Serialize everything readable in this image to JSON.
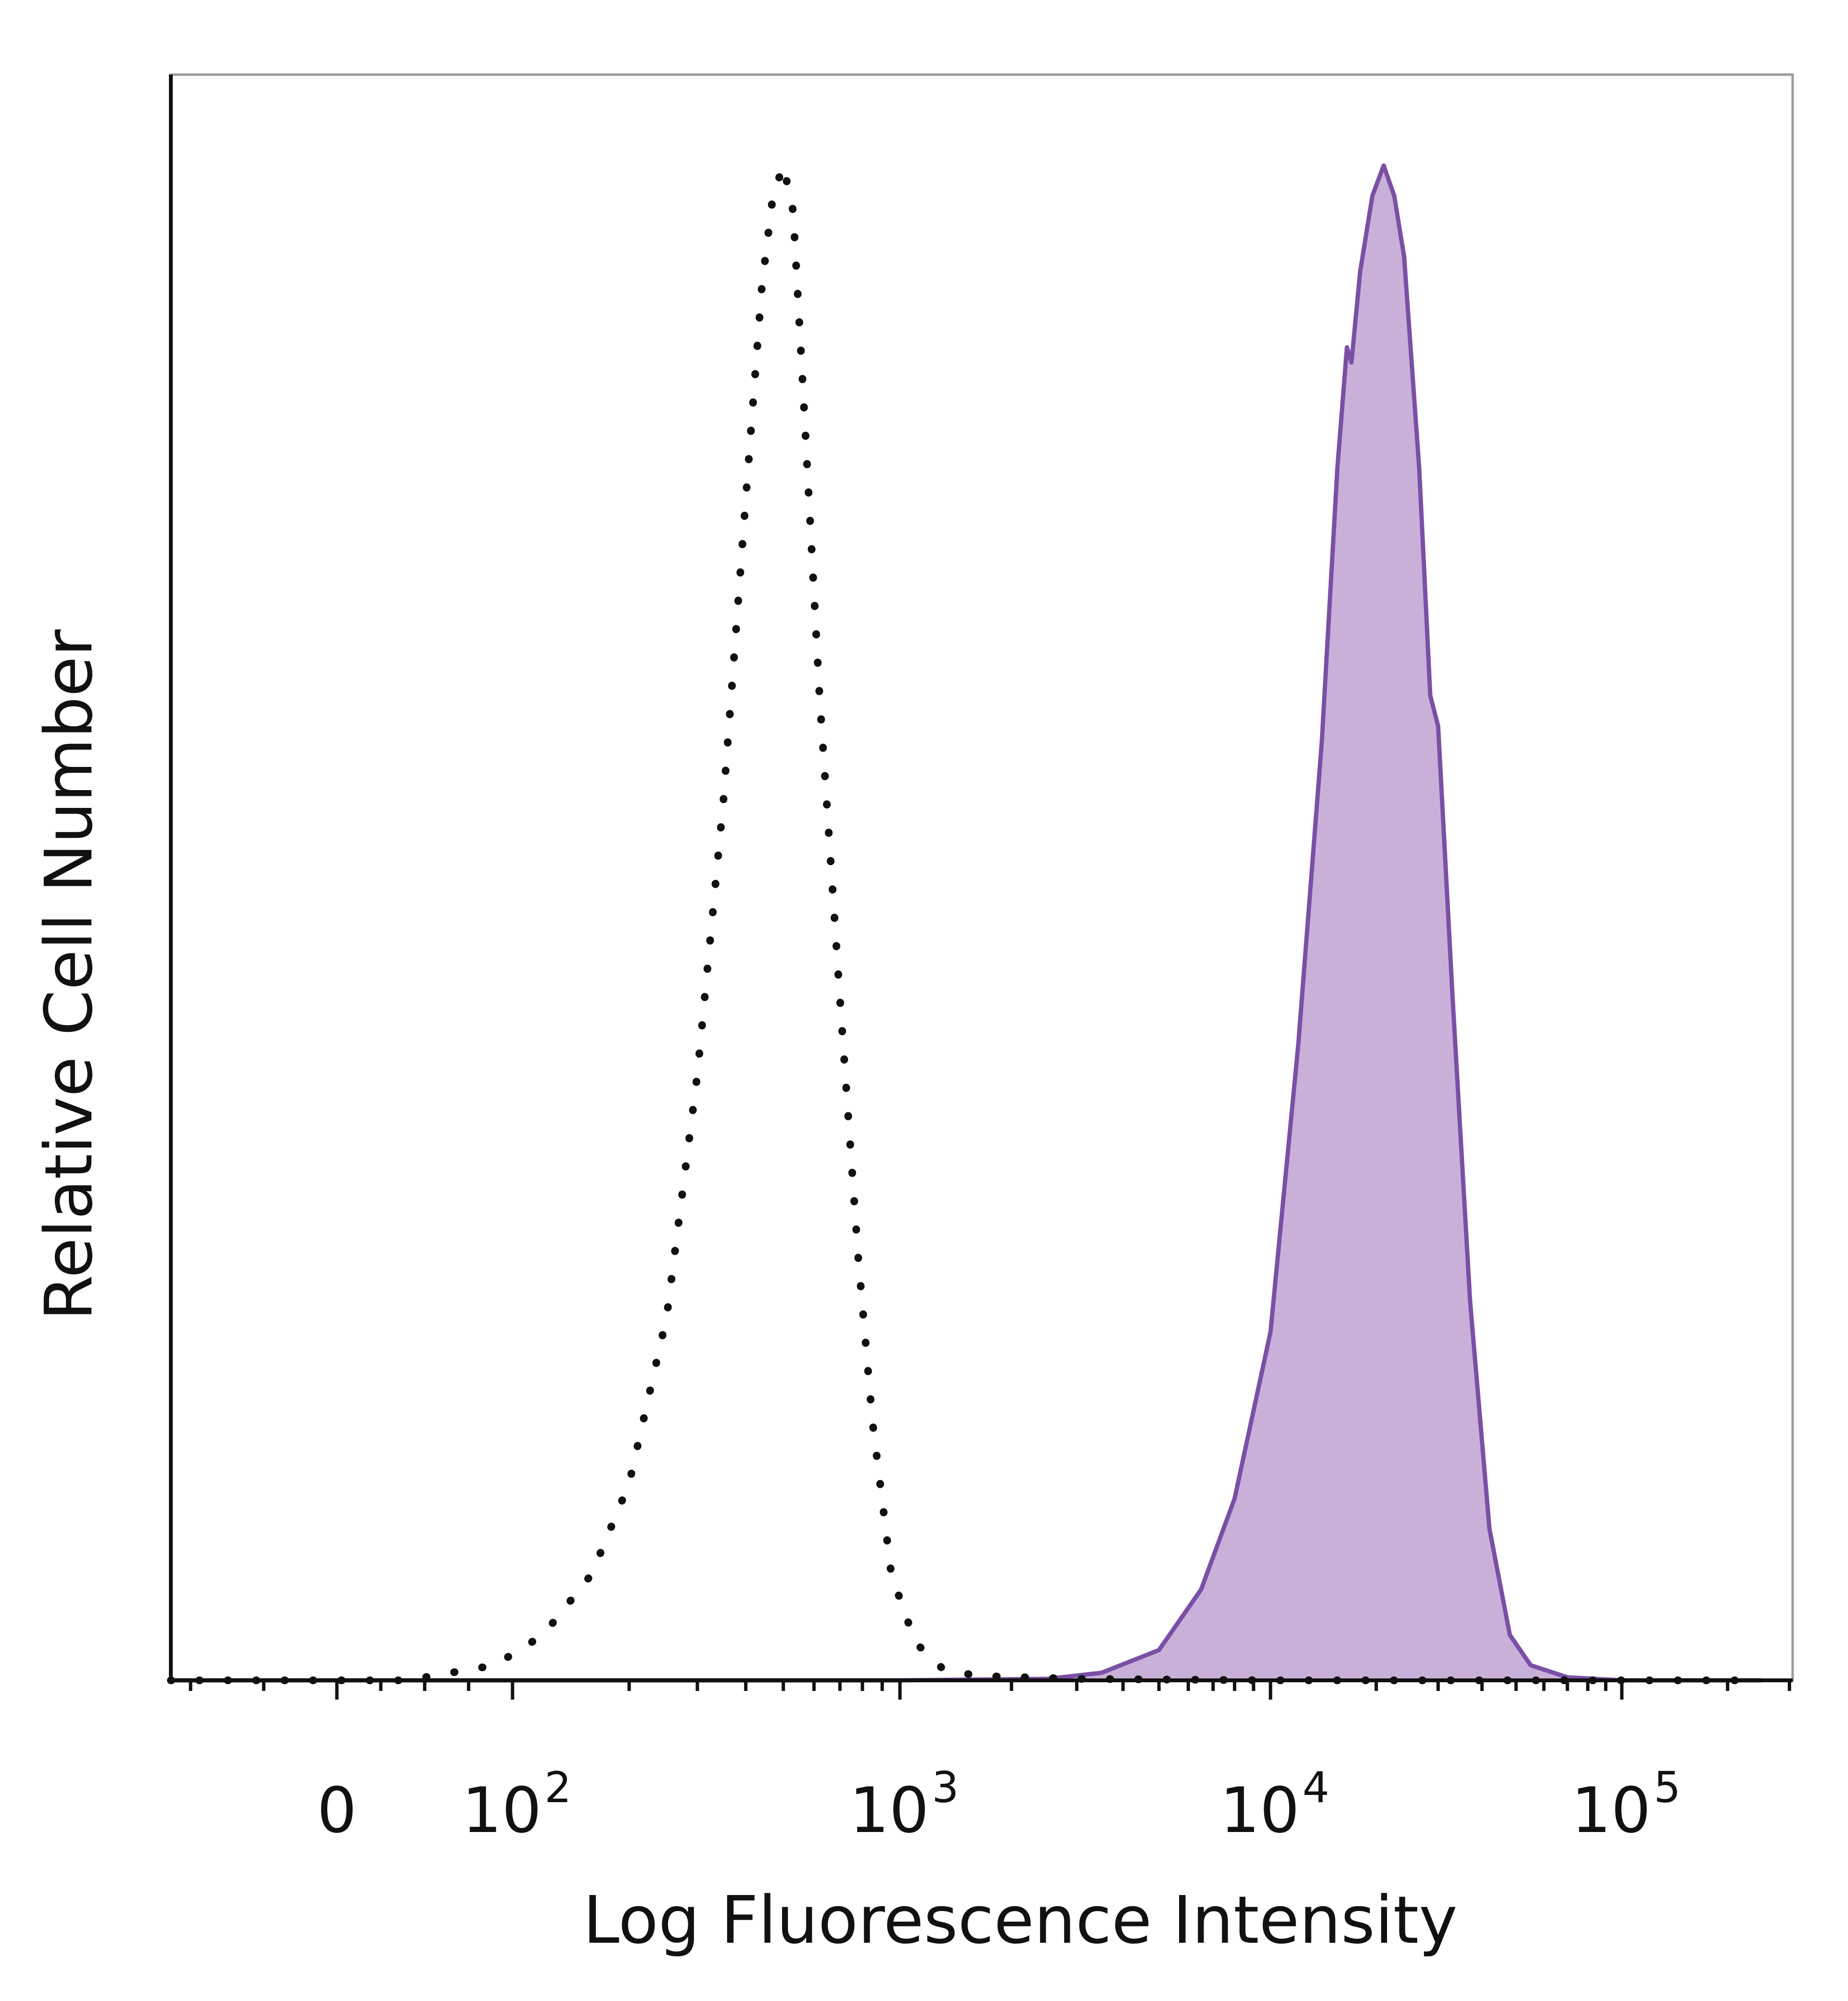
{
  "chart_data": {
    "type": "area",
    "title": "",
    "xlabel": "Log Fluorescence Intensity",
    "ylabel": "Relative Cell Number",
    "x_scale": "biexponential (linear near 0, log above 10^2)",
    "xlim": [
      -60,
      250000
    ],
    "ylim": [
      0,
      1.06
    ],
    "grid": false,
    "legend": "none",
    "x_ticks": [
      {
        "value": 0,
        "base": "0",
        "exp": ""
      },
      {
        "value": 100,
        "base": "10",
        "exp": "2"
      },
      {
        "value": 1000,
        "base": "10",
        "exp": "3"
      },
      {
        "value": 10000,
        "base": "10",
        "exp": "4"
      },
      {
        "value": 100000,
        "base": "10",
        "exp": "5"
      }
    ],
    "series": [
      {
        "style": "dotted",
        "color": "#111111",
        "points": [
          [
            -60,
            0.0
          ],
          [
            0,
            0.0
          ],
          [
            40,
            0.0
          ],
          [
            90,
            0.01
          ],
          [
            120,
            0.03
          ],
          [
            160,
            0.07
          ],
          [
            200,
            0.13
          ],
          [
            250,
            0.24
          ],
          [
            300,
            0.4
          ],
          [
            350,
            0.58
          ],
          [
            400,
            0.78
          ],
          [
            440,
            0.92
          ],
          [
            470,
            0.98
          ],
          [
            500,
            1.0
          ],
          [
            530,
            0.97
          ],
          [
            560,
            0.86
          ],
          [
            620,
            0.65
          ],
          [
            700,
            0.45
          ],
          [
            780,
            0.28
          ],
          [
            850,
            0.17
          ],
          [
            950,
            0.07
          ],
          [
            1100,
            0.025
          ],
          [
            1300,
            0.008
          ],
          [
            1600,
            0.003
          ],
          [
            3000,
            0.001
          ],
          [
            10000,
            0.0
          ],
          [
            100000,
            0.0
          ],
          [
            250000,
            0.0
          ]
        ]
      },
      {
        "style": "filled",
        "color": "#7b4fa6",
        "fill": "#c9b0d9",
        "points": [
          [
            -60,
            0.0
          ],
          [
            0,
            0.0
          ],
          [
            100,
            0.0
          ],
          [
            1000,
            0.0
          ],
          [
            2500,
            0.001
          ],
          [
            3500,
            0.005
          ],
          [
            5000,
            0.02
          ],
          [
            6500,
            0.06
          ],
          [
            8000,
            0.12
          ],
          [
            10000,
            0.23
          ],
          [
            12000,
            0.42
          ],
          [
            14000,
            0.62
          ],
          [
            15500,
            0.8
          ],
          [
            16500,
            0.88
          ],
          [
            17000,
            0.87
          ],
          [
            18000,
            0.93
          ],
          [
            19500,
            0.98
          ],
          [
            21000,
            1.0
          ],
          [
            22500,
            0.98
          ],
          [
            24000,
            0.94
          ],
          [
            26500,
            0.8
          ],
          [
            28500,
            0.65
          ],
          [
            30000,
            0.63
          ],
          [
            33000,
            0.45
          ],
          [
            37000,
            0.25
          ],
          [
            42000,
            0.1
          ],
          [
            48000,
            0.03
          ],
          [
            55000,
            0.01
          ],
          [
            70000,
            0.002
          ],
          [
            100000,
            0.0
          ],
          [
            250000,
            0.0
          ]
        ]
      }
    ]
  }
}
